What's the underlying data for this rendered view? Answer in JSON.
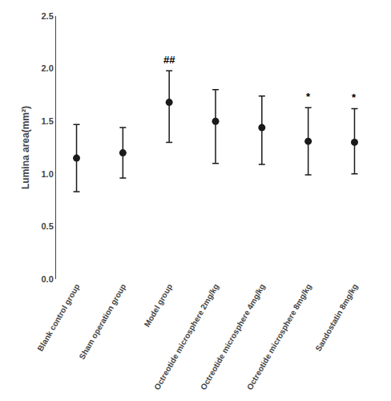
{
  "chart_data": {
    "type": "scatter",
    "categories": [
      "Blank control group",
      "Sham operation group",
      "Model group",
      "Octreotide microsphere 2mg/kg",
      "Octreotide microsphere 4mg/kg",
      "Octreotide microsphere 8mg/kg",
      "Sandostatin 8mg/kg"
    ],
    "values": [
      1.15,
      1.2,
      1.68,
      1.5,
      1.44,
      1.31,
      1.3
    ],
    "error_upper": [
      0.32,
      0.24,
      0.3,
      0.3,
      0.3,
      0.32,
      0.32
    ],
    "error_lower": [
      0.32,
      0.24,
      0.38,
      0.4,
      0.35,
      0.32,
      0.3
    ],
    "annotations": [
      {
        "x": "Model group",
        "text": "##"
      },
      {
        "x": "Octreotide microsphere 8mg/kg",
        "text": "*"
      },
      {
        "x": "Sandostatin 8mg/kg",
        "text": "*"
      }
    ],
    "ylabel": "Lumina area(mm²)",
    "ylim": [
      0.0,
      2.5
    ],
    "yticks": [
      {
        "value": 0.0,
        "label": "0.0"
      },
      0.5,
      {
        "value": 1.0,
        "label": "1.0"
      },
      1.5,
      {
        "value": 2.0,
        "label": "2.0"
      },
      2.5
    ],
    "color": "#1a1a1a",
    "grid": false
  }
}
